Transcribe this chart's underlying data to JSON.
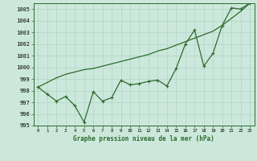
{
  "xlabel": "Graphe pression niveau de la mer (hPa)",
  "x": [
    0,
    1,
    2,
    3,
    4,
    5,
    6,
    7,
    8,
    9,
    10,
    11,
    12,
    13,
    14,
    15,
    16,
    17,
    18,
    19,
    20,
    21,
    22,
    23
  ],
  "y_main": [
    998.3,
    997.7,
    997.1,
    997.5,
    996.7,
    995.3,
    997.9,
    997.1,
    997.4,
    998.9,
    998.5,
    998.6,
    998.8,
    998.9,
    998.4,
    999.9,
    1002.0,
    1003.2,
    1000.1,
    1001.2,
    1003.6,
    1005.1,
    1005.0,
    1005.5
  ],
  "y_trend": [
    998.3,
    998.7,
    999.1,
    999.4,
    999.6,
    999.8,
    999.9,
    1000.1,
    1000.3,
    1000.5,
    1000.7,
    1000.9,
    1001.1,
    1001.4,
    1001.6,
    1001.9,
    1002.2,
    1002.5,
    1002.8,
    1003.1,
    1003.6,
    1004.2,
    1004.8,
    1005.5
  ],
  "ylim": [
    995.0,
    1005.5
  ],
  "xlim": [
    -0.5,
    23.5
  ],
  "yticks": [
    995,
    996,
    997,
    998,
    999,
    1000,
    1001,
    1002,
    1003,
    1004,
    1005
  ],
  "xticks": [
    0,
    1,
    2,
    3,
    4,
    5,
    6,
    7,
    8,
    9,
    10,
    11,
    12,
    13,
    14,
    15,
    16,
    17,
    18,
    19,
    20,
    21,
    22,
    23
  ],
  "line_color": "#2d6a2d",
  "bg_color": "#cce8dc",
  "grid_color": "#b0d4c4"
}
